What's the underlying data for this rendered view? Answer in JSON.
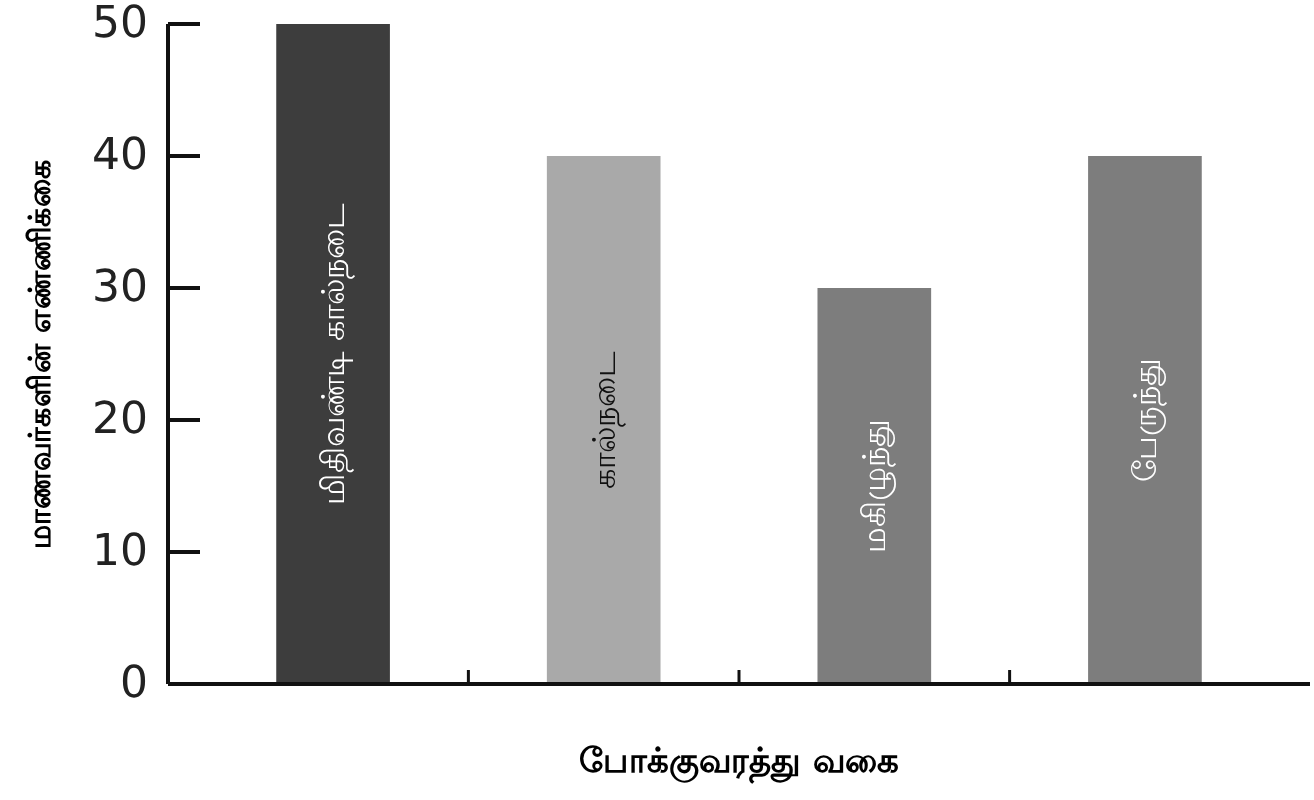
{
  "chart_data": {
    "type": "bar",
    "xlabel": "போக்குவரத்து வகை",
    "ylabel": "மாணவர்களின் எண்ணிக்கை",
    "categories": [
      "மிதிவண்டி கால்நடை",
      "கால்நடை",
      "மகிழுந்து",
      "பேருந்து"
    ],
    "values": [
      50,
      40,
      30,
      40
    ],
    "colors": [
      "#3d3d3d",
      "#a9a9a9",
      "#7d7d7d",
      "#7d7d7d"
    ],
    "ylim": [
      0,
      50
    ],
    "yticks": [
      0,
      10,
      20,
      30,
      40,
      50
    ]
  }
}
